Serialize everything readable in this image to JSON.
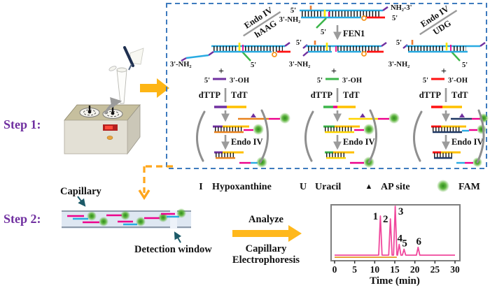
{
  "steps": {
    "step1": "Step 1:",
    "step2": "Step 2:"
  },
  "scheme": {
    "endo_iv": "Endo IV",
    "haag": "hAAG",
    "udg": "UDG",
    "fen1": "FEN1",
    "tdt": "TdT",
    "dttp": "dTTP",
    "plus": "+",
    "five": "5'",
    "three_oh": "3'-OH",
    "three_nh2": "3'-NH₂",
    "nh2_three": "NH₂-3'"
  },
  "legend": {
    "items": [
      {
        "symbol": "I",
        "color": "#ED7D31",
        "label": "Hypoxanthine"
      },
      {
        "symbol": "U",
        "color": "#FFC000",
        "label": "Uracil"
      },
      {
        "symbol": "▲",
        "color": "#7030A0",
        "label": "AP site"
      },
      {
        "symbol": "●",
        "color": "#57B33E",
        "label": "FAM"
      }
    ]
  },
  "step2_section": {
    "capillary_label": "Capillary",
    "detection_window_label": "Detection window",
    "analyze_label": "Analyze",
    "method_line1": "Capillary",
    "method_line2": "Electrophoresis"
  },
  "chart_data": {
    "type": "line",
    "title": "",
    "xlabel": "Time (min)",
    "ylabel": "",
    "xlim": [
      0,
      30
    ],
    "xticks": [
      0,
      5,
      10,
      15,
      20,
      25,
      30
    ],
    "line_color": "#F0479C",
    "baseline_color": "#E8A33D",
    "baseline_segment": [
      0,
      15.5
    ],
    "peaks": [
      {
        "label": "1",
        "time": 11.4,
        "height": 0.8
      },
      {
        "label": "2",
        "time": 13.9,
        "height": 0.74
      },
      {
        "label": "3",
        "time": 15.1,
        "height": 1.0
      },
      {
        "label": "4",
        "time": 16.1,
        "height": 0.22
      },
      {
        "label": "5",
        "time": 17.3,
        "height": 0.12
      },
      {
        "label": "6",
        "time": 20.8,
        "height": 0.16
      }
    ]
  }
}
